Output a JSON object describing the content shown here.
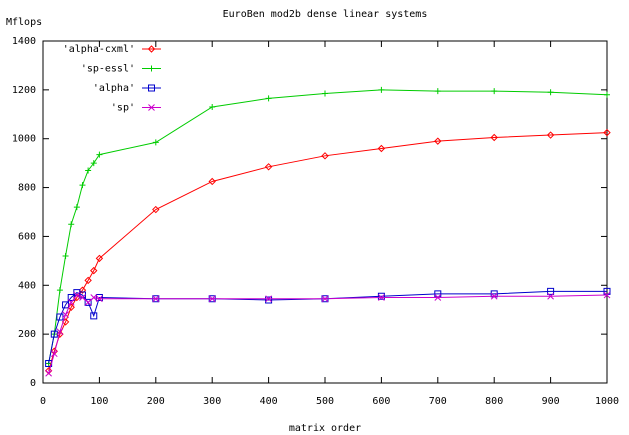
{
  "chart_data": {
    "type": "line",
    "title": "EuroBen mod2b dense linear systems",
    "ylabel": "Mflops",
    "xlabel": "matrix order",
    "x": [
      10,
      20,
      30,
      40,
      50,
      60,
      70,
      80,
      90,
      100,
      200,
      300,
      400,
      500,
      600,
      700,
      800,
      900,
      1000
    ],
    "series": [
      {
        "name": "'alpha-cxml'",
        "color": "#ff0000",
        "marker": "diamond",
        "values": [
          50,
          130,
          200,
          250,
          310,
          350,
          380,
          420,
          460,
          510,
          710,
          825,
          885,
          930,
          960,
          990,
          1005,
          1015,
          1025
        ]
      },
      {
        "name": "'sp-essl'",
        "color": "#00cc00",
        "marker": "plus",
        "values": [
          80,
          200,
          380,
          520,
          650,
          720,
          810,
          870,
          900,
          935,
          985,
          1130,
          1165,
          1185,
          1200,
          1195,
          1195,
          1190,
          1180
        ]
      },
      {
        "name": "'alpha'",
        "color": "#0000cc",
        "marker": "square",
        "values": [
          80,
          200,
          270,
          320,
          350,
          370,
          360,
          330,
          275,
          350,
          345,
          345,
          340,
          345,
          355,
          365,
          365,
          375,
          375
        ]
      },
      {
        "name": "'sp'",
        "color": "#cc00cc",
        "marker": "cross",
        "values": [
          40,
          120,
          210,
          280,
          330,
          360,
          350,
          330,
          350,
          345,
          345,
          345,
          345,
          345,
          350,
          350,
          355,
          355,
          360
        ]
      }
    ],
    "xlim": [
      0,
      1000
    ],
    "xticks": [
      0,
      100,
      200,
      300,
      400,
      500,
      600,
      700,
      800,
      900,
      1000
    ],
    "ylim": [
      0,
      1400
    ],
    "yticks": [
      0,
      200,
      400,
      600,
      800,
      1000,
      1200,
      1400
    ],
    "legend": "upper-left"
  }
}
